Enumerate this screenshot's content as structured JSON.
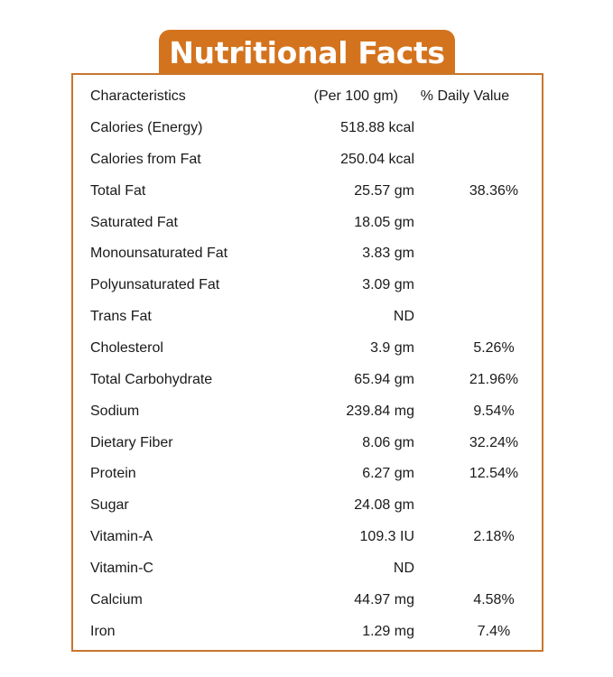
{
  "title": "Nutritional Facts",
  "header": {
    "characteristics": "Characteristics",
    "amount": "(Per 100 gm)",
    "daily_value": "% Daily Value"
  },
  "rows": [
    {
      "name": "Calories (Energy)",
      "amount": "518.88 kcal",
      "dv": ""
    },
    {
      "name": "Calories from Fat",
      "amount": "250.04 kcal",
      "dv": ""
    },
    {
      "name": "Total Fat",
      "amount": "25.57 gm",
      "dv": "38.36%"
    },
    {
      "name": "Saturated Fat",
      "amount": "18.05 gm",
      "dv": ""
    },
    {
      "name": "Monounsaturated Fat",
      "amount": "3.83 gm",
      "dv": ""
    },
    {
      "name": "Polyunsaturated Fat",
      "amount": "3.09 gm",
      "dv": ""
    },
    {
      "name": "Trans Fat",
      "amount": "ND",
      "dv": ""
    },
    {
      "name": "Cholesterol",
      "amount": "3.9 gm",
      "dv": "5.26%"
    },
    {
      "name": "Total Carbohydrate",
      "amount": "65.94 gm",
      "dv": "21.96%"
    },
    {
      "name": "Sodium",
      "amount": "239.84 mg",
      "dv": "9.54%"
    },
    {
      "name": "Dietary Fiber",
      "amount": "8.06 gm",
      "dv": "32.24%"
    },
    {
      "name": "Protein",
      "amount": "6.27 gm",
      "dv": "12.54%"
    },
    {
      "name": "Sugar",
      "amount": "24.08 gm",
      "dv": ""
    },
    {
      "name": "Vitamin-A",
      "amount": "109.3 IU",
      "dv": "2.18%"
    },
    {
      "name": "Vitamin-C",
      "amount": "ND",
      "dv": ""
    },
    {
      "name": "Calcium",
      "amount": "44.97 mg",
      "dv": "4.58%"
    },
    {
      "name": "Iron",
      "amount": "1.29 mg",
      "dv": "7.4%"
    }
  ],
  "colors": {
    "accent": "#d4731e",
    "border": "#c8762c",
    "text": "#1a1a1a"
  }
}
